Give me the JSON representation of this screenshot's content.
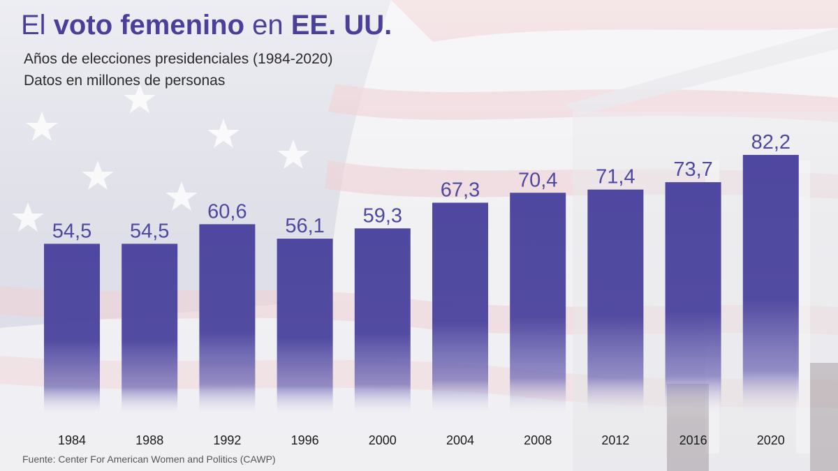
{
  "title": {
    "part1": "El ",
    "bold1": "voto femenino",
    "part2": " en ",
    "bold2": "EE. UU."
  },
  "subtitle_line1": "Años de elecciones presidenciales (1984-2020)",
  "subtitle_line2": "Datos en millones de personas",
  "source": "Fuente: Center For American Women and Politics (CAWP)",
  "colors": {
    "bar": "#4f48a0",
    "label": "#4f48a0",
    "title_bold": "#4a3f99"
  },
  "chart_data": {
    "type": "bar",
    "title": "El voto femenino en EE. UU.",
    "categories": [
      "1984",
      "1988",
      "1992",
      "1996",
      "2000",
      "2004",
      "2008",
      "2012",
      "2016",
      "2020"
    ],
    "values": [
      54.5,
      54.5,
      60.6,
      56.1,
      59.3,
      67.3,
      70.4,
      71.4,
      73.7,
      82.2
    ],
    "value_labels": [
      "54,5",
      "54,5",
      "60,6",
      "56,1",
      "59,3",
      "67,3",
      "70,4",
      "71,4",
      "73,7",
      "82,2"
    ],
    "xlabel": "",
    "ylabel": "",
    "grid": false,
    "legend": "none"
  }
}
